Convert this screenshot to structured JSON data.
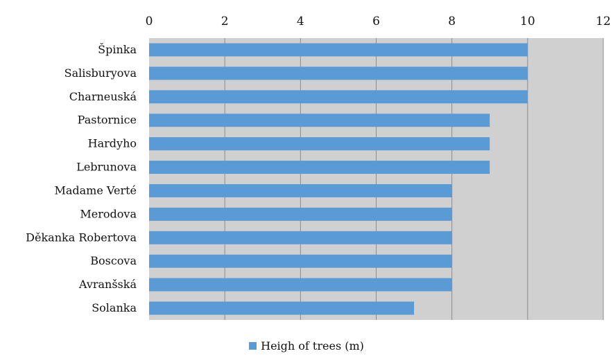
{
  "chart_data": {
    "type": "bar",
    "orientation": "horizontal",
    "categories": [
      "Špinka",
      "Salisburyova",
      "Charneuská",
      "Pastornice",
      "Hardyho",
      "Lebrunova",
      "Madame Verté",
      "Merodova",
      "Děkanka Robertova",
      "Boscova",
      "Avranšská",
      "Solanka"
    ],
    "series": [
      {
        "name": "Heigh of trees (m)",
        "values": [
          10,
          10,
          10,
          9,
          9,
          9,
          8,
          8,
          8,
          8,
          8,
          7
        ]
      }
    ],
    "xlim": [
      0,
      12
    ],
    "x_ticks": [
      "0",
      "2",
      "4",
      "6",
      "8",
      "10",
      "12"
    ],
    "x_axis_position": "top",
    "grid": true,
    "legend_position": "bottom",
    "colors": {
      "bar": "#5b9bd5",
      "plot_background": "#d0d0d0",
      "gridline": "#8c8c8c"
    }
  }
}
